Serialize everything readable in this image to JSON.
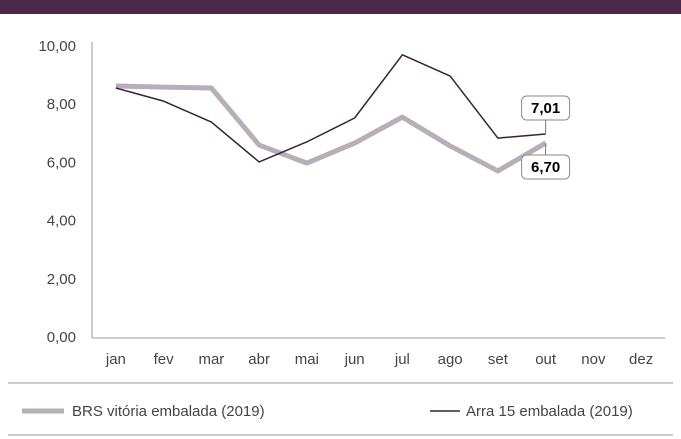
{
  "chart_data": {
    "type": "line",
    "categories": [
      "jan",
      "fev",
      "mar",
      "abr",
      "mai",
      "jun",
      "jul",
      "ago",
      "set",
      "out",
      "nov",
      "dez"
    ],
    "series": [
      {
        "name": "BRS vitória embalada (2019)",
        "color": "#b8aeb8",
        "values": [
          8.66,
          8.62,
          8.59,
          6.63,
          6.01,
          6.7,
          7.59,
          6.6,
          5.74,
          6.7,
          null,
          null
        ],
        "value_labels": [
          null,
          null,
          null,
          null,
          null,
          null,
          null,
          null,
          null,
          "6,70",
          null,
          null
        ]
      },
      {
        "name": "Arra 15 embalada (2019)",
        "color": "#3d1f3a",
        "values": [
          8.59,
          8.14,
          7.42,
          6.05,
          6.74,
          7.56,
          9.73,
          9.0,
          6.87,
          7.01,
          null,
          null
        ],
        "value_labels": [
          null,
          null,
          null,
          null,
          null,
          null,
          null,
          null,
          null,
          "7,01",
          null,
          null
        ]
      }
    ],
    "ylim": [
      0,
      10
    ],
    "yticks": [
      {
        "value": 0,
        "label": "0,00"
      },
      {
        "value": 2,
        "label": "2,00"
      },
      {
        "value": 4,
        "label": "4,00"
      },
      {
        "value": 6,
        "label": "6,00"
      },
      {
        "value": 8,
        "label": "8,00"
      },
      {
        "value": 10,
        "label": "10,00"
      }
    ],
    "grid": false,
    "legend": "bottom"
  }
}
